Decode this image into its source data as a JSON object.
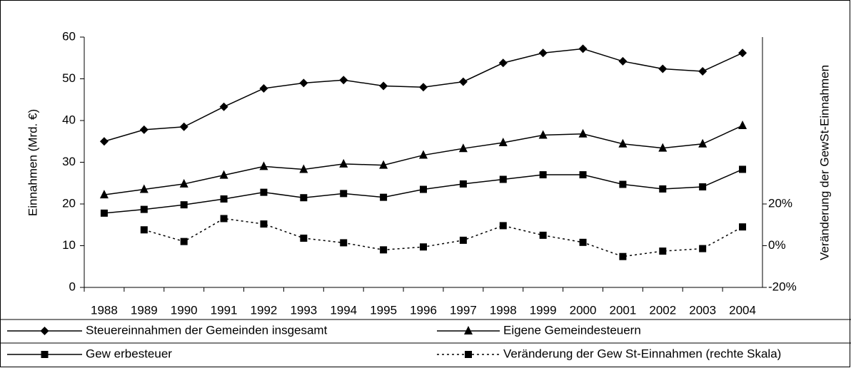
{
  "chart_data": {
    "type": "line",
    "categories": [
      "1988",
      "1989",
      "1990",
      "1991",
      "1992",
      "1993",
      "1994",
      "1995",
      "1996",
      "1997",
      "1998",
      "1999",
      "2000",
      "2001",
      "2002",
      "2003",
      "2004"
    ],
    "ylabel": "Einnahmen (Mrd. €)",
    "y2label": "Veränderung der GewSt-Einnahmen",
    "ylim": [
      0,
      60
    ],
    "yticks": [
      0,
      10,
      20,
      30,
      40,
      50,
      60
    ],
    "y2lim": [
      -20,
      100
    ],
    "y2ticks": [
      {
        "value": -20,
        "label": "-20%"
      },
      {
        "value": 0,
        "label": "0%"
      },
      {
        "value": 20,
        "label": "20%"
      }
    ],
    "grid": false,
    "legend": "bottom",
    "series": [
      {
        "name": "Steuereinnahmen der Gemeinden insgesamt",
        "color": "#000000",
        "marker": "diamond",
        "dash": false,
        "values": [
          35.0,
          37.8,
          38.5,
          43.3,
          47.7,
          49.0,
          49.7,
          48.3,
          48.0,
          49.3,
          53.8,
          56.2,
          57.2,
          54.2,
          52.4,
          51.8,
          56.2
        ]
      },
      {
        "name": "Eigene Gemeindesteuern",
        "color": "#000000",
        "marker": "triangle",
        "dash": false,
        "values": [
          22.2,
          23.5,
          24.8,
          26.9,
          29.0,
          28.3,
          29.6,
          29.3,
          31.7,
          33.3,
          34.7,
          36.5,
          36.8,
          34.4,
          33.4,
          34.4,
          38.8
        ]
      },
      {
        "name": "Gew erbesteuer",
        "color": "#000000",
        "marker": "square",
        "dash": false,
        "values": [
          17.8,
          18.7,
          19.8,
          21.2,
          22.8,
          21.5,
          22.5,
          21.6,
          23.5,
          24.8,
          25.9,
          27.0,
          27.0,
          24.7,
          23.6,
          24.1,
          28.3
        ]
      },
      {
        "name": "Veränderung der Gew St-Einnahmen (rechte Skala)",
        "color": "#000000",
        "marker": "square",
        "dash": true,
        "axis": "y2",
        "values": [
          null,
          7.6,
          2,
          13,
          10.4,
          3.6,
          1.4,
          -2,
          -0.6,
          2.6,
          9.6,
          5,
          1.6,
          -5.2,
          -2.6,
          -1.4,
          9
        ]
      }
    ]
  }
}
